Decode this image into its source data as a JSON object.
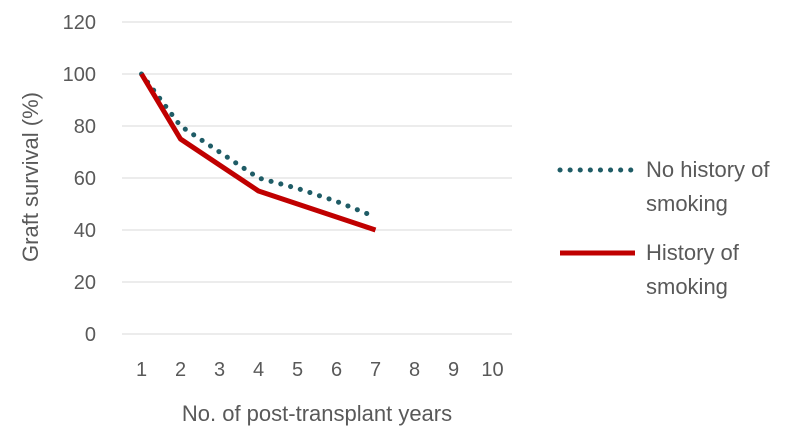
{
  "chart_data": {
    "type": "line",
    "title": "",
    "xlabel": "No. of post-transplant years",
    "ylabel": "Graft survival (%)",
    "categories": [
      "1",
      "2",
      "3",
      "4",
      "5",
      "6",
      "7",
      "8",
      "9",
      "10"
    ],
    "ylim": [
      0,
      120
    ],
    "yticks": [
      0,
      20,
      40,
      60,
      80,
      100,
      120
    ],
    "grid": true,
    "legend_position": "right",
    "series": [
      {
        "name": "No history of smoking",
        "name_lines": [
          "No history of",
          "smoking"
        ],
        "x": [
          1,
          2,
          3,
          4,
          5,
          6,
          7
        ],
        "values": [
          100,
          80,
          70,
          60,
          56,
          51,
          45
        ],
        "style": "dotted",
        "color": "#1f5c66"
      },
      {
        "name": "History of smoking",
        "name_lines": [
          "History of",
          "smoking"
        ],
        "x": [
          1,
          2,
          3,
          4,
          5,
          6,
          7
        ],
        "values": [
          100,
          75,
          65,
          55,
          50,
          45,
          40
        ],
        "style": "solid",
        "color": "#c00000"
      }
    ],
    "colors": {
      "grid": "#d9d9d9",
      "text": "#595959"
    }
  }
}
